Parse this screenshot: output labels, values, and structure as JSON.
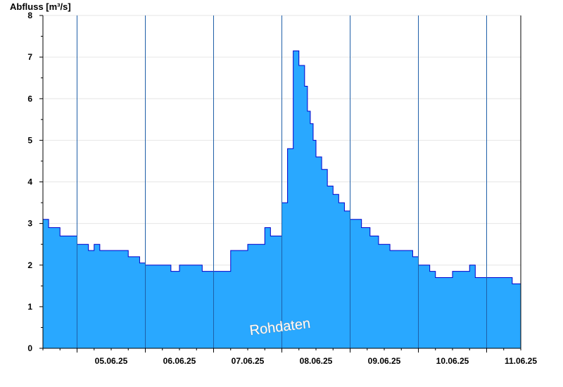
{
  "chart_data": {
    "type": "area",
    "ylabel": "Abfluss [m³/s]",
    "ylim": [
      0,
      8
    ],
    "yticks": [
      0,
      1,
      2,
      3,
      4,
      5,
      6,
      7,
      8
    ],
    "x_days": [
      "05.06.25",
      "06.06.25",
      "07.06.25",
      "08.06.25",
      "09.06.25",
      "10.06.25",
      "11.06.25"
    ],
    "x_start": "2025-06-04T12:00",
    "x_end": "2025-06-11T12:00",
    "grid": true,
    "watermark": "Rohdaten",
    "colors": {
      "fill": "#29a8ff",
      "line": "#0000cc"
    },
    "series": [
      {
        "x": [
          "2025-06-04T12:00",
          "2025-06-04T14:00",
          "2025-06-04T16:00",
          "2025-06-04T18:00",
          "2025-06-04T20:00",
          "2025-06-05T00:00",
          "2025-06-05T04:00",
          "2025-06-05T06:00",
          "2025-06-05T08:00",
          "2025-06-05T12:00",
          "2025-06-05T18:00",
          "2025-06-05T22:00",
          "2025-06-06T00:00",
          "2025-06-06T06:00",
          "2025-06-06T09:00",
          "2025-06-06T12:00",
          "2025-06-06T18:00",
          "2025-06-06T20:00",
          "2025-06-06T22:00",
          "2025-06-07T00:00",
          "2025-06-07T03:00",
          "2025-06-07T06:00",
          "2025-06-07T12:00",
          "2025-06-07T18:00",
          "2025-06-07T20:00",
          "2025-06-07T22:00",
          "2025-06-08T00:00",
          "2025-06-08T02:00",
          "2025-06-08T04:00",
          "2025-06-08T06:00",
          "2025-06-08T08:00",
          "2025-06-08T09:00",
          "2025-06-08T10:00",
          "2025-06-08T11:00",
          "2025-06-08T12:00",
          "2025-06-08T14:00",
          "2025-06-08T16:00",
          "2025-06-08T18:00",
          "2025-06-08T20:00",
          "2025-06-08T22:00",
          "2025-06-09T00:00",
          "2025-06-09T02:00",
          "2025-06-09T04:00",
          "2025-06-09T07:00",
          "2025-06-09T10:00",
          "2025-06-09T14:00",
          "2025-06-09T18:00",
          "2025-06-09T22:00",
          "2025-06-10T00:00",
          "2025-06-10T04:00",
          "2025-06-10T06:00",
          "2025-06-10T12:00",
          "2025-06-10T18:00",
          "2025-06-10T20:00",
          "2025-06-11T00:00",
          "2025-06-11T02:00",
          "2025-06-11T06:00",
          "2025-06-11T09:00",
          "2025-06-11T12:00"
        ],
        "values": [
          3.1,
          2.9,
          2.9,
          2.7,
          2.7,
          2.5,
          2.35,
          2.5,
          2.35,
          2.35,
          2.2,
          2.05,
          2.0,
          2.0,
          1.85,
          2.0,
          2.0,
          1.85,
          1.85,
          1.85,
          1.85,
          2.35,
          2.5,
          2.9,
          2.7,
          2.7,
          3.5,
          4.8,
          7.15,
          6.8,
          6.3,
          5.7,
          5.4,
          5.0,
          4.6,
          4.3,
          3.9,
          3.7,
          3.5,
          3.3,
          3.1,
          3.1,
          2.9,
          2.7,
          2.5,
          2.35,
          2.35,
          2.2,
          2.0,
          1.85,
          1.7,
          1.85,
          2.0,
          1.7,
          1.7,
          1.7,
          1.7,
          1.55,
          1.7
        ]
      }
    ]
  }
}
